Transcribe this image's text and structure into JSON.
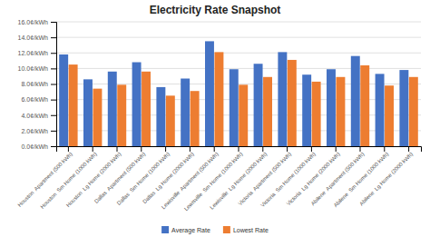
{
  "chart_data": {
    "type": "bar",
    "title": "Electricity Rate Snapshot",
    "categories": [
      "Houston  Apartment (500 kWh)",
      "Houston  Sm Home (1000 kWh)",
      "Houston  Lg Home (2000 kWh)",
      "Dallas  Apartment (500 kWh)",
      "Dallas  Sm Home (1000 kWh)",
      "Dallas  Lg Home (2000 kWh)",
      "Lewisville  Apartment (500 kWh)",
      "Lewisville  Sm Home (1000 kWh)",
      "Lewisville  Lg Home (2000 kWh)",
      "Victoria  Apartment (500 kWh)",
      "Victoria  Sm Home (1000 kWh)",
      "Victoria  Lg Home (2000 kWh)",
      "Abilene  Apartment (500 kWh)",
      "Abilene  Sm Home (1000 kWh)",
      "Abilene  Lg Home (2000 kWh)"
    ],
    "series": [
      {
        "name": "Average Rate",
        "color": "#4472c4",
        "values": [
          11.8,
          8.6,
          9.6,
          10.8,
          7.6,
          8.7,
          13.5,
          9.9,
          10.6,
          12.1,
          9.2,
          9.9,
          11.6,
          9.3,
          9.8
        ]
      },
      {
        "name": "Lowest Rate",
        "color": "#ed7d31",
        "values": [
          10.5,
          7.4,
          7.9,
          9.6,
          6.5,
          7.1,
          12.1,
          7.9,
          8.9,
          11.1,
          8.3,
          8.9,
          10.4,
          7.8,
          8.9
        ]
      }
    ],
    "ylim": [
      0,
      16
    ],
    "yticks": [
      {
        "value": 0,
        "label": "0.0¢/kWh"
      },
      {
        "value": 2,
        "label": "2.0¢/kWh"
      },
      {
        "value": 4,
        "label": "4.0¢/kWh"
      },
      {
        "value": 6,
        "label": "6.0¢/kWh"
      },
      {
        "value": 8,
        "label": "8.0¢/kWh"
      },
      {
        "value": 10,
        "label": "10.0¢/kWh"
      },
      {
        "value": 12,
        "label": "12.0¢/kWh"
      },
      {
        "value": 14,
        "label": "14.0¢/kWh"
      },
      {
        "value": 16,
        "label": "16.0¢/kWh"
      }
    ],
    "grid": true,
    "legend": "bottom"
  }
}
